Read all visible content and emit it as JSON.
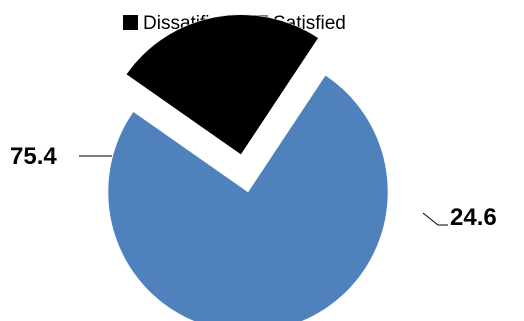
{
  "chart_data": {
    "type": "pie",
    "categories": [
      "Dissatified",
      "Satisfied"
    ],
    "values": [
      24.6,
      75.4
    ],
    "colors": [
      "#000000",
      "#4f81bd"
    ],
    "data_labels": [
      "24.6",
      "75.4"
    ],
    "exploded": "Dissatified",
    "legend": "top",
    "title": ""
  }
}
